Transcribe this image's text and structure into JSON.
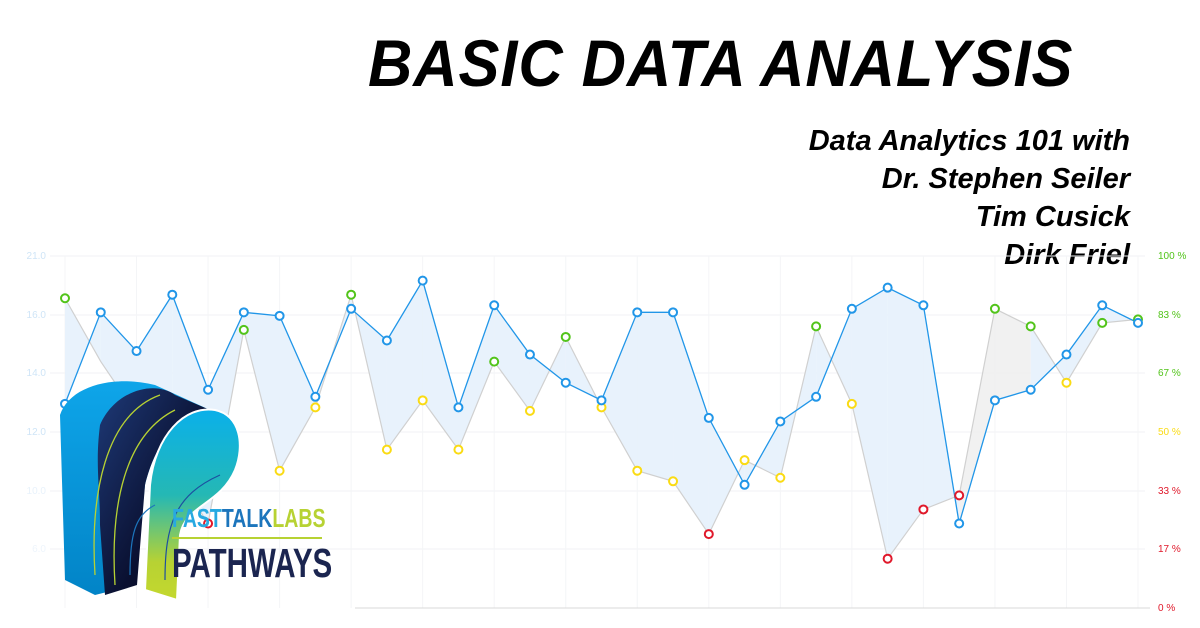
{
  "header": {
    "title": "BASIC DATA ANALYSIS",
    "subtitle_lines": [
      "Data Analytics 101 with",
      "Dr. Stephen Seiler",
      "Tim Cusick",
      "Dirk Friel"
    ]
  },
  "brand": {
    "line1_parts": [
      {
        "text": "FAST",
        "color": "#27a9e1"
      },
      {
        "text": "TALK",
        "color": "#1c75bc"
      },
      {
        "text": "LABS",
        "color": "#b7d233"
      }
    ],
    "line2": "PATHWAYS",
    "logo_icon": "pathways-p-logo-icon"
  },
  "colors": {
    "primary_line": "#2196e8",
    "primary_fill": "#e6f1fc",
    "secondary_line": "#d0d0d0",
    "secondary_fill": "#f0f0f0",
    "green": "#52c41a",
    "yellow": "#fadb14",
    "red": "#e0192b",
    "left_axis": "#cfe5f7"
  },
  "chart_data": {
    "type": "line",
    "title": "",
    "xlabel": "",
    "ylabel_left": "",
    "ylabel_right": "",
    "left_axis_ticks": [
      "21.0",
      "16.0",
      "14.0",
      "12.0",
      "10.0",
      "6.0",
      ""
    ],
    "right_axis_ticks": [
      {
        "label": "100 %",
        "color": "#52c41a"
      },
      {
        "label": "83 %",
        "color": "#52c41a"
      },
      {
        "label": "67 %",
        "color": "#52c41a"
      },
      {
        "label": "50 %",
        "color": "#fadb14"
      },
      {
        "label": "33 %",
        "color": "#e0192b"
      },
      {
        "label": "17 %",
        "color": "#e0192b"
      },
      {
        "label": "0 %",
        "color": "#e0192b"
      }
    ],
    "ylim_right": [
      0,
      100
    ],
    "grid": true,
    "x": [
      1,
      2,
      3,
      4,
      5,
      6,
      7,
      8,
      9,
      10,
      11,
      12,
      13,
      14,
      15,
      16,
      17,
      18,
      19,
      20,
      21,
      22,
      23,
      24,
      25,
      26,
      27,
      28,
      29,
      30,
      31
    ],
    "series": [
      {
        "name": "primary",
        "color": "#2196e8",
        "values_pct": [
          58,
          84,
          73,
          89,
          62,
          84,
          83,
          60,
          85,
          76,
          93,
          57,
          86,
          72,
          64,
          59,
          84,
          84,
          54,
          35,
          53,
          60,
          85,
          91,
          86,
          24,
          59,
          62,
          72,
          86,
          81
        ]
      },
      {
        "name": "secondary",
        "color": "#cccccc",
        "values_pct": [
          88,
          70,
          55,
          40,
          24,
          79,
          39,
          57,
          89,
          45,
          59,
          45,
          70,
          56,
          77,
          57,
          39,
          36,
          21,
          42,
          37,
          80,
          58,
          14,
          28,
          32,
          85,
          80,
          64,
          81,
          82
        ],
        "marker_colors": [
          "#52c41a",
          "#d0d0d0",
          "#d0d0d0",
          "#d0d0d0",
          "#e0192b",
          "#52c41a",
          "#fadb14",
          "#fadb14",
          "#52c41a",
          "#fadb14",
          "#fadb14",
          "#fadb14",
          "#52c41a",
          "#fadb14",
          "#52c41a",
          "#fadb14",
          "#fadb14",
          "#fadb14",
          "#e0192b",
          "#fadb14",
          "#fadb14",
          "#52c41a",
          "#fadb14",
          "#e0192b",
          "#e0192b",
          "#e0192b",
          "#52c41a",
          "#52c41a",
          "#fadb14",
          "#52c41a",
          "#52c41a"
        ]
      }
    ]
  }
}
